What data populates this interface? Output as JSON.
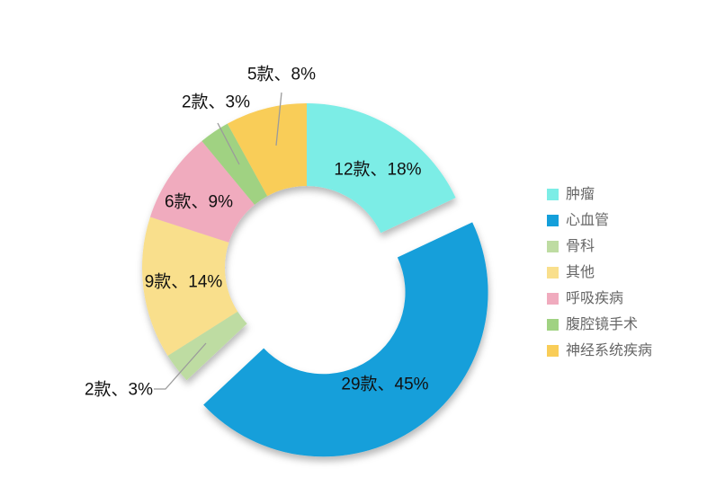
{
  "chart_data": {
    "type": "pie",
    "subtype": "donut-exploded",
    "title": "",
    "legend_position": "right",
    "start_angle_deg": 0,
    "direction": "clockwise",
    "label_format": "{count}款、{percent}%",
    "slices": [
      {
        "name": "肿瘤",
        "count": 12,
        "percent": 18,
        "label": "12款、18%",
        "color": "#7CEDE6",
        "exploded": false,
        "label_placement": "inside"
      },
      {
        "name": "心血管",
        "count": 29,
        "percent": 45,
        "label": "29款、45%",
        "color": "#149FDA",
        "exploded": true,
        "label_placement": "inside"
      },
      {
        "name": "骨科",
        "count": 2,
        "percent": 3,
        "label": "2款、3%",
        "color": "#BEDCA2",
        "exploded": false,
        "label_placement": "outside"
      },
      {
        "name": "其他",
        "count": 9,
        "percent": 14,
        "label": "9款、14%",
        "color": "#F9DF8C",
        "exploded": false,
        "label_placement": "inside"
      },
      {
        "name": "呼吸疾病",
        "count": 6,
        "percent": 9,
        "label": "6款、9%",
        "color": "#F0ABBE",
        "exploded": false,
        "label_placement": "inside"
      },
      {
        "name": "腹腔镜手术",
        "count": 2,
        "percent": 3,
        "label": "2款、3%",
        "color": "#A0D282",
        "exploded": false,
        "label_placement": "outside"
      },
      {
        "name": "神经系统疾病",
        "count": 5,
        "percent": 8,
        "label": "5款、8%",
        "color": "#F9CD58",
        "exploded": false,
        "label_placement": "outside"
      }
    ]
  },
  "colors": {
    "background": "#FFFFFF",
    "slice_label_text": "#111111",
    "legend_text": "#666666",
    "leader_line": "#9B9B9B"
  }
}
